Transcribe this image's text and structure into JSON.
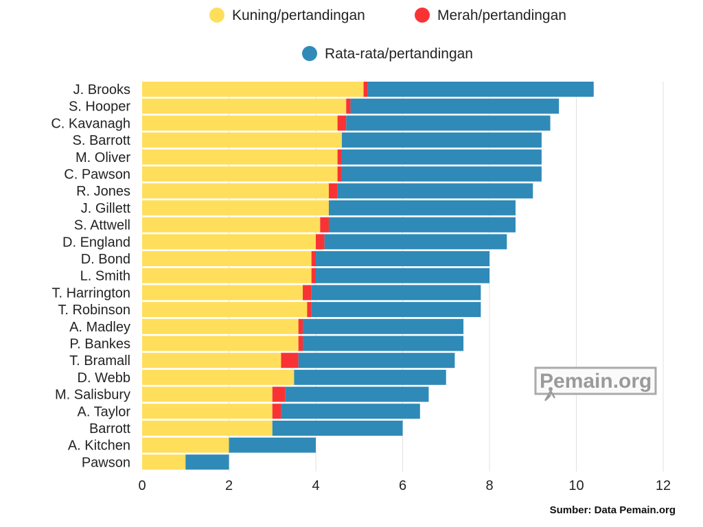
{
  "chart_data": {
    "type": "bar",
    "orientation": "horizontal",
    "stacked": true,
    "categories": [
      "J. Brooks",
      "S. Hooper",
      "C. Kavanagh",
      "S. Barrott",
      "M. Oliver",
      "C. Pawson",
      "R. Jones",
      "J. Gillett",
      "S. Attwell",
      "D. England",
      "D. Bond",
      "L. Smith",
      "T. Harrington",
      "T. Robinson",
      "A. Madley",
      "P. Bankes",
      "T. Bramall",
      "D. Webb",
      "M. Salisbury",
      "A. Taylor",
      "Barrott",
      "A. Kitchen",
      "Pawson"
    ],
    "series": [
      {
        "name": "Kuning/pertandingan",
        "color": "#FFDE5C",
        "values": [
          5.1,
          4.7,
          4.5,
          4.6,
          4.5,
          4.5,
          4.3,
          4.3,
          4.1,
          4.0,
          3.9,
          3.9,
          3.7,
          3.8,
          3.6,
          3.6,
          3.2,
          3.5,
          3.0,
          3.0,
          3.0,
          2.0,
          1.0
        ]
      },
      {
        "name": "Merah/pertandingan",
        "color": "#F93334",
        "values": [
          0.1,
          0.1,
          0.2,
          0.0,
          0.1,
          0.1,
          0.2,
          0.0,
          0.2,
          0.2,
          0.1,
          0.1,
          0.2,
          0.1,
          0.1,
          0.1,
          0.4,
          0.0,
          0.3,
          0.2,
          0.0,
          0.0,
          0.0
        ]
      },
      {
        "name": "Rata-rata/pertandingan",
        "color": "#2F8AB8",
        "values": [
          5.2,
          4.8,
          4.7,
          4.6,
          4.6,
          4.6,
          4.5,
          4.3,
          4.3,
          4.2,
          4.0,
          4.0,
          3.9,
          3.9,
          3.7,
          3.7,
          3.6,
          3.5,
          3.3,
          3.2,
          3.0,
          2.0,
          1.0
        ]
      }
    ],
    "xlim": [
      0,
      12
    ],
    "xticks": [
      "0",
      "2",
      "4",
      "6",
      "8",
      "10",
      "12"
    ],
    "grid": true,
    "legend_position": "top"
  },
  "watermark": {
    "text": "Pemain.org"
  },
  "source": "Sumber: Data Pemain.org"
}
